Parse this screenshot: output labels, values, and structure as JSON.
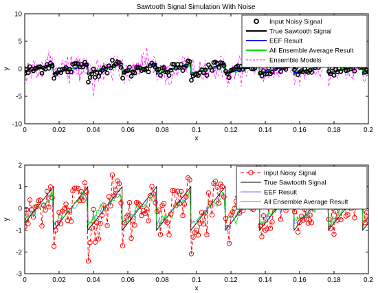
{
  "chart_data": [
    {
      "type": "line",
      "title": "Sawtooth Signal Simulation With Noise",
      "xlabel": "x",
      "ylabel": "y",
      "xlim": [
        0,
        0.2
      ],
      "ylim": [
        -10,
        10
      ],
      "xticks": [
        0,
        0.02,
        0.04,
        0.06,
        0.08,
        0.1,
        0.12,
        0.14,
        0.16,
        0.18,
        0.2
      ],
      "xtick_labels": [
        "0",
        "0.02",
        "0.04",
        "0.06",
        "0.08",
        "0.1",
        "0.12",
        "0.14",
        "0.16",
        "0.18",
        "0.2"
      ],
      "yticks": [
        -10,
        -5,
        0,
        5,
        10
      ],
      "ytick_labels": [
        "-10",
        "-5",
        "0",
        "5",
        "10"
      ],
      "grid": false,
      "legend_position": "top-right",
      "sawtooth": {
        "period": 0.02,
        "low": -1,
        "high": 1,
        "phase": 0.0033
      },
      "series": [
        {
          "name": "Input Noisy Signal",
          "style": "circle-markers",
          "color": "#000000"
        },
        {
          "name": "True Sawtooth Signal",
          "style": "line",
          "color": "#000000"
        },
        {
          "name": "EEF Result",
          "style": "line",
          "color": "#0000ff"
        },
        {
          "name": "All Ensemble Average Result",
          "style": "line",
          "color": "#00dd00"
        },
        {
          "name": "Ensemble Models",
          "style": "dashed",
          "color": "#ff00ff"
        }
      ]
    },
    {
      "type": "line",
      "title": "",
      "xlabel": "x",
      "ylabel": "y",
      "xlim": [
        0,
        0.2
      ],
      "ylim": [
        -3,
        2
      ],
      "xticks": [
        0,
        0.02,
        0.04,
        0.06,
        0.08,
        0.1,
        0.12,
        0.14,
        0.16,
        0.18,
        0.2
      ],
      "xtick_labels": [
        "0",
        "0.02",
        "0.04",
        "0.06",
        "0.08",
        "0.1",
        "0.12",
        "0.14",
        "0.16",
        "0.18",
        "0.2"
      ],
      "yticks": [
        -3,
        -2,
        -1,
        0,
        1,
        2
      ],
      "ytick_labels": [
        "-3",
        "-2",
        "-1",
        "0",
        "1",
        "2"
      ],
      "grid": false,
      "legend_position": "top-right",
      "sawtooth": {
        "period": 0.02,
        "low": -1,
        "high": 1,
        "phase": 0.0033
      },
      "series": [
        {
          "name": "Input Noisy Signal",
          "style": "dashed-circles",
          "color": "#ff0000"
        },
        {
          "name": "True Sawtooth Signal",
          "style": "line",
          "color": "#000000"
        },
        {
          "name": "EEF Result",
          "style": "line",
          "color": "#6f6fff"
        },
        {
          "name": "All Ensemble Average Result",
          "style": "line",
          "color": "#00dd00"
        }
      ]
    }
  ]
}
